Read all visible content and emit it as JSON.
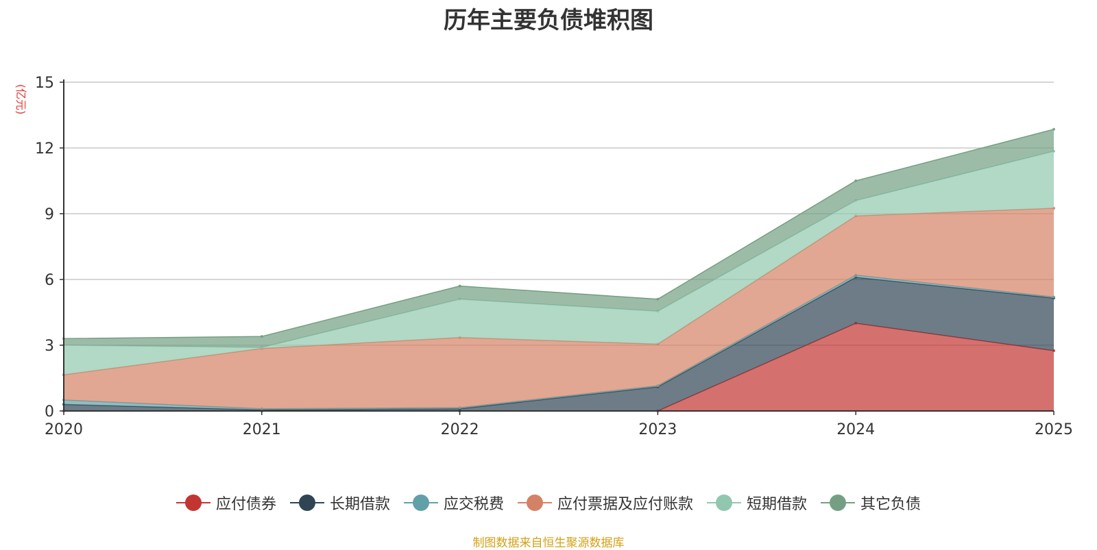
{
  "chart_data": {
    "type": "area",
    "stacked": true,
    "title": "历年主要负债堆积图",
    "ylabel": "(亿元)",
    "xlabel": "",
    "categories": [
      "2020",
      "2021",
      "2022",
      "2023",
      "2024",
      "2025"
    ],
    "ylim": [
      0,
      15
    ],
    "yticks": [
      0,
      3,
      6,
      9,
      12,
      15
    ],
    "grid": true,
    "legend_position": "bottom",
    "series": [
      {
        "name": "应付债券",
        "color": "#c23531",
        "values": [
          0,
          0,
          0,
          0,
          4.0,
          2.75
        ]
      },
      {
        "name": "长期借款",
        "color": "#2f4554",
        "values": [
          0.3,
          0.05,
          0.1,
          1.1,
          2.1,
          2.4
        ]
      },
      {
        "name": "应交税费",
        "color": "#61a0a8",
        "values": [
          0.2,
          0.05,
          0.05,
          0.05,
          0.1,
          0.05
        ]
      },
      {
        "name": "应付票据及应付账款",
        "color": "#d48265",
        "values": [
          1.15,
          2.75,
          3.2,
          1.9,
          2.7,
          4.05
        ]
      },
      {
        "name": "短期借款",
        "color": "#91c7ae",
        "values": [
          1.35,
          0.05,
          1.75,
          1.5,
          0.7,
          2.6
        ]
      },
      {
        "name": "其它负债",
        "color": "#749f83",
        "values": [
          0.3,
          0.5,
          0.6,
          0.55,
          0.9,
          1.0
        ]
      }
    ]
  },
  "source": "制图数据来自恒生聚源数据库"
}
